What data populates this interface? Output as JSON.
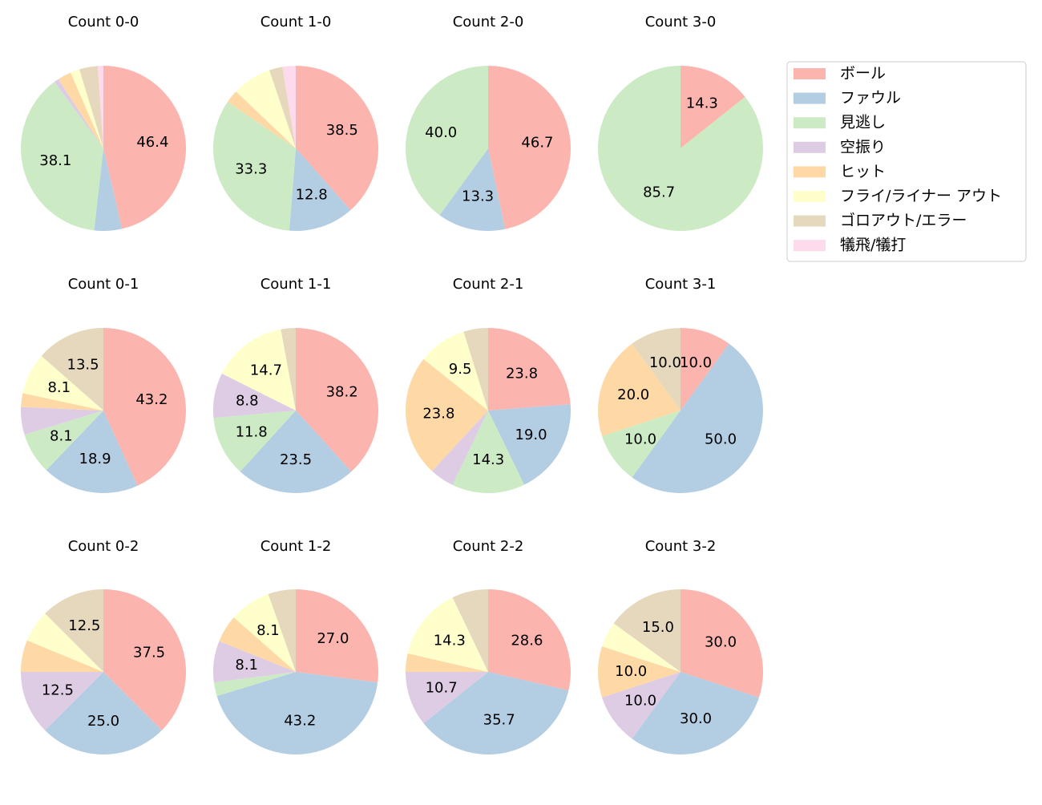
{
  "chart_data": [
    {
      "type": "pie",
      "title": "Count 0-0",
      "categories": [
        "ボール",
        "ファウル",
        "見逃し",
        "空振り",
        "ヒット",
        "フライ/ライナー アウト",
        "ゴロアウト/エラー",
        "犠飛/犠打"
      ],
      "colors": [
        "#fbb4ae",
        "#b3cde3",
        "#ccebc5",
        "#decbe4",
        "#fed9a6",
        "#ffffcc",
        "#e5d8bd",
        "#fddaec"
      ],
      "values": [
        46.4,
        5.4,
        38.1,
        0.9,
        2.7,
        1.8,
        3.6,
        1.1
      ],
      "value_labels": [
        "46.4",
        null,
        "38.1",
        null,
        null,
        null,
        null,
        null
      ]
    },
    {
      "type": "pie",
      "title": "Count 1-0",
      "categories": [
        "ボール",
        "ファウル",
        "見逃し",
        "空振り",
        "ヒット",
        "フライ/ライナー アウト",
        "ゴロアウト/エラー",
        "犠飛/犠打"
      ],
      "colors": [
        "#fbb4ae",
        "#b3cde3",
        "#ccebc5",
        "#decbe4",
        "#fed9a6",
        "#ffffcc",
        "#e5d8bd",
        "#fddaec"
      ],
      "values": [
        38.5,
        12.8,
        33.3,
        0,
        2.6,
        7.7,
        2.6,
        2.6
      ],
      "value_labels": [
        "38.5",
        "12.8",
        "33.3",
        null,
        null,
        null,
        null,
        null
      ]
    },
    {
      "type": "pie",
      "title": "Count 2-0",
      "categories": [
        "ボール",
        "ファウル",
        "見逃し",
        "空振り",
        "ヒット",
        "フライ/ライナー アウト",
        "ゴロアウト/エラー",
        "犠飛/犠打"
      ],
      "colors": [
        "#fbb4ae",
        "#b3cde3",
        "#ccebc5",
        "#decbe4",
        "#fed9a6",
        "#ffffcc",
        "#e5d8bd",
        "#fddaec"
      ],
      "values": [
        46.7,
        13.3,
        40.0,
        0,
        0,
        0,
        0,
        0
      ],
      "value_labels": [
        "46.7",
        "13.3",
        "40.0",
        null,
        null,
        null,
        null,
        null
      ]
    },
    {
      "type": "pie",
      "title": "Count 3-0",
      "categories": [
        "ボール",
        "ファウル",
        "見逃し",
        "空振り",
        "ヒット",
        "フライ/ライナー アウト",
        "ゴロアウト/エラー",
        "犠飛/犠打"
      ],
      "colors": [
        "#fbb4ae",
        "#b3cde3",
        "#ccebc5",
        "#decbe4",
        "#fed9a6",
        "#ffffcc",
        "#e5d8bd",
        "#fddaec"
      ],
      "values": [
        14.3,
        0,
        85.7,
        0,
        0,
        0,
        0,
        0
      ],
      "value_labels": [
        "14.3",
        null,
        "85.7",
        null,
        null,
        null,
        null,
        null
      ]
    },
    {
      "type": "pie",
      "title": "Count 0-1",
      "categories": [
        "ボール",
        "ファウル",
        "見逃し",
        "空振り",
        "ヒット",
        "フライ/ライナー アウト",
        "ゴロアウト/エラー",
        "犠飛/犠打"
      ],
      "colors": [
        "#fbb4ae",
        "#b3cde3",
        "#ccebc5",
        "#decbe4",
        "#fed9a6",
        "#ffffcc",
        "#e5d8bd",
        "#fddaec"
      ],
      "values": [
        43.2,
        18.9,
        8.1,
        5.4,
        2.7,
        8.1,
        13.5,
        0
      ],
      "value_labels": [
        "43.2",
        "18.9",
        "8.1",
        null,
        null,
        "8.1",
        "13.5",
        null
      ]
    },
    {
      "type": "pie",
      "title": "Count 1-1",
      "categories": [
        "ボール",
        "ファウル",
        "見逃し",
        "空振り",
        "ヒット",
        "フライ/ライナー アウト",
        "ゴロアウト/エラー",
        "犠飛/犠打"
      ],
      "colors": [
        "#fbb4ae",
        "#b3cde3",
        "#ccebc5",
        "#decbe4",
        "#fed9a6",
        "#ffffcc",
        "#e5d8bd",
        "#fddaec"
      ],
      "values": [
        38.2,
        23.5,
        11.8,
        8.8,
        0,
        14.7,
        2.9,
        0
      ],
      "value_labels": [
        "38.2",
        "23.5",
        "11.8",
        "8.8",
        null,
        "14.7",
        null,
        null
      ]
    },
    {
      "type": "pie",
      "title": "Count 2-1",
      "categories": [
        "ボール",
        "ファウル",
        "見逃し",
        "空振り",
        "ヒット",
        "フライ/ライナー アウト",
        "ゴロアウト/エラー",
        "犠飛/犠打"
      ],
      "colors": [
        "#fbb4ae",
        "#b3cde3",
        "#ccebc5",
        "#decbe4",
        "#fed9a6",
        "#ffffcc",
        "#e5d8bd",
        "#fddaec"
      ],
      "values": [
        23.8,
        19.0,
        14.3,
        4.8,
        23.8,
        9.5,
        4.8,
        0
      ],
      "value_labels": [
        "23.8",
        "19.0",
        "14.3",
        null,
        "23.8",
        "9.5",
        null,
        null
      ]
    },
    {
      "type": "pie",
      "title": "Count 3-1",
      "categories": [
        "ボール",
        "ファウル",
        "見逃し",
        "空振り",
        "ヒット",
        "フライ/ライナー アウト",
        "ゴロアウト/エラー",
        "犠飛/犠打"
      ],
      "colors": [
        "#fbb4ae",
        "#b3cde3",
        "#ccebc5",
        "#decbe4",
        "#fed9a6",
        "#ffffcc",
        "#e5d8bd",
        "#fddaec"
      ],
      "values": [
        10.0,
        50.0,
        10.0,
        0,
        20.0,
        0,
        10.0,
        0
      ],
      "value_labels": [
        "10.0",
        "50.0",
        "10.0",
        null,
        "20.0",
        null,
        "10.0",
        null
      ]
    },
    {
      "type": "pie",
      "title": "Count 0-2",
      "categories": [
        "ボール",
        "ファウル",
        "見逃し",
        "空振り",
        "ヒット",
        "フライ/ライナー アウト",
        "ゴロアウト/エラー",
        "犠飛/犠打"
      ],
      "colors": [
        "#fbb4ae",
        "#b3cde3",
        "#ccebc5",
        "#decbe4",
        "#fed9a6",
        "#ffffcc",
        "#e5d8bd",
        "#fddaec"
      ],
      "values": [
        37.5,
        25.0,
        0,
        12.5,
        6.25,
        6.25,
        12.5,
        0
      ],
      "value_labels": [
        "37.5",
        "25.0",
        null,
        "12.5",
        null,
        null,
        "12.5",
        null
      ]
    },
    {
      "type": "pie",
      "title": "Count 1-2",
      "categories": [
        "ボール",
        "ファウル",
        "見逃し",
        "空振り",
        "ヒット",
        "フライ/ライナー アウト",
        "ゴロアウト/エラー",
        "犠飛/犠打"
      ],
      "colors": [
        "#fbb4ae",
        "#b3cde3",
        "#ccebc5",
        "#decbe4",
        "#fed9a6",
        "#ffffcc",
        "#e5d8bd",
        "#fddaec"
      ],
      "values": [
        27.0,
        43.2,
        2.7,
        8.1,
        5.4,
        8.1,
        5.4,
        0
      ],
      "value_labels": [
        "27.0",
        "43.2",
        null,
        "8.1",
        null,
        "8.1",
        null,
        null
      ]
    },
    {
      "type": "pie",
      "title": "Count 2-2",
      "categories": [
        "ボール",
        "ファウル",
        "見逃し",
        "空振り",
        "ヒット",
        "フライ/ライナー アウト",
        "ゴロアウト/エラー",
        "犠飛/犠打"
      ],
      "colors": [
        "#fbb4ae",
        "#b3cde3",
        "#ccebc5",
        "#decbe4",
        "#fed9a6",
        "#ffffcc",
        "#e5d8bd",
        "#fddaec"
      ],
      "values": [
        28.6,
        35.7,
        0,
        10.7,
        3.6,
        14.3,
        7.1,
        0
      ],
      "value_labels": [
        "28.6",
        "35.7",
        null,
        "10.7",
        null,
        "14.3",
        null,
        null
      ]
    },
    {
      "type": "pie",
      "title": "Count 3-2",
      "categories": [
        "ボール",
        "ファウル",
        "見逃し",
        "空振り",
        "ヒット",
        "フライ/ライナー アウト",
        "ゴロアウト/エラー",
        "犠飛/犠打"
      ],
      "colors": [
        "#fbb4ae",
        "#b3cde3",
        "#ccebc5",
        "#decbe4",
        "#fed9a6",
        "#ffffcc",
        "#e5d8bd",
        "#fddaec"
      ],
      "values": [
        30.0,
        30.0,
        0,
        10.0,
        10.0,
        5.0,
        15.0,
        0
      ],
      "value_labels": [
        "30.0",
        "30.0",
        null,
        "10.0",
        "10.0",
        null,
        "15.0",
        null
      ]
    }
  ]
}
